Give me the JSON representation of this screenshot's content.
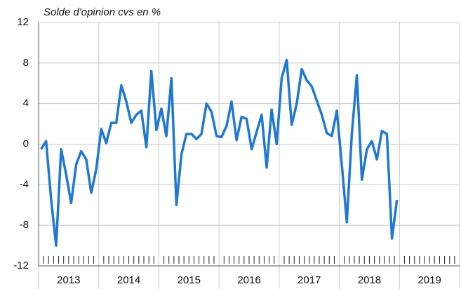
{
  "chart_data": {
    "type": "line",
    "title": "Solde d'opinion cvs en %",
    "year_labels": [
      "2013",
      "2014",
      "2015",
      "2016",
      "2017",
      "2018",
      "2019"
    ],
    "values": [
      -0.5,
      0.3,
      -5.5,
      -10,
      -0.5,
      -3,
      -5.8,
      -2,
      -0.7,
      -1.5,
      -4.8,
      -2.5,
      1.5,
      0.1,
      2.1,
      2.1,
      5.8,
      4.2,
      2.1,
      2.9,
      3.3,
      -0.3,
      7.2,
      1.4,
      3.5,
      0.8,
      6.5,
      -6,
      -1,
      1,
      1,
      0.5,
      1,
      4,
      3.2,
      0.8,
      0.7,
      1.8,
      4.2,
      0.4,
      2.7,
      2.5,
      -0.5,
      1.2,
      2.9,
      -2.3,
      3.4,
      0,
      6.5,
      8.3,
      1.9,
      4,
      7.4,
      6.3,
      5.7,
      4.3,
      2.9,
      1.1,
      0.8,
      3.3,
      -2,
      -7.7,
      1,
      6.8,
      -3.5,
      -0.5,
      0.3,
      -1.5,
      1.3,
      1,
      -9.3,
      -5.5
    ],
    "color": "#1f78d1",
    "ylim": [
      -12,
      12
    ],
    "yticks": [
      -12,
      -8,
      -4,
      0,
      4,
      8,
      12
    ],
    "grid": true
  }
}
